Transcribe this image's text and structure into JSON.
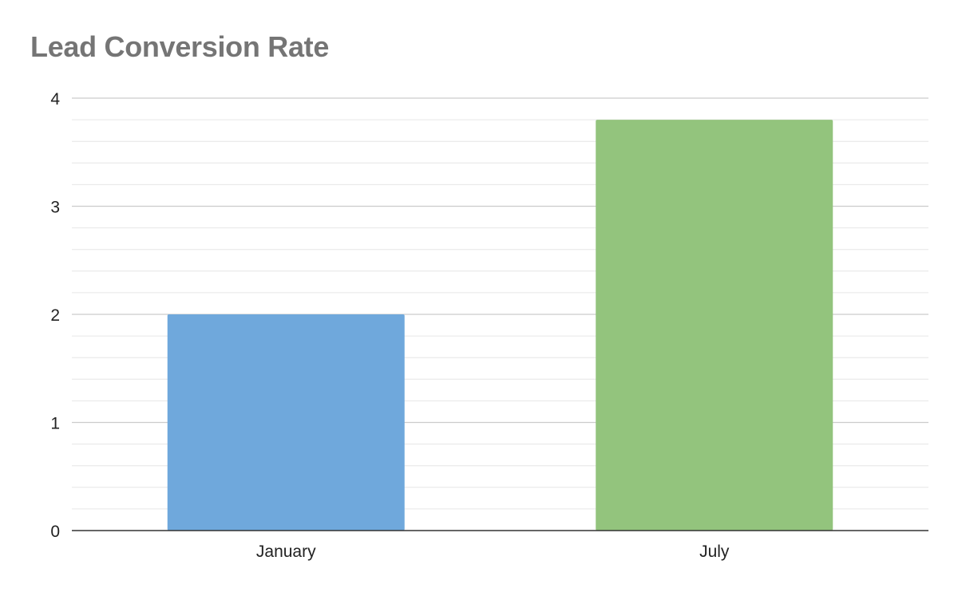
{
  "chart_data": {
    "type": "bar",
    "title": "Lead Conversion Rate",
    "xlabel": "",
    "ylabel": "",
    "categories": [
      "January",
      "July"
    ],
    "values": [
      2.0,
      3.8
    ],
    "bar_colors": [
      "#6fa8dc",
      "#93c47d"
    ],
    "ylim": [
      0,
      4
    ],
    "yticks": [
      0,
      1,
      2,
      3,
      4
    ],
    "minor_gridlines_per_major": 5,
    "grid": true,
    "legend": "none"
  },
  "colors": {
    "title": "#757575",
    "major_grid": "#cccccc",
    "minor_grid": "#e6e6e6",
    "axis": "#333333",
    "tick_text": "#222222"
  }
}
